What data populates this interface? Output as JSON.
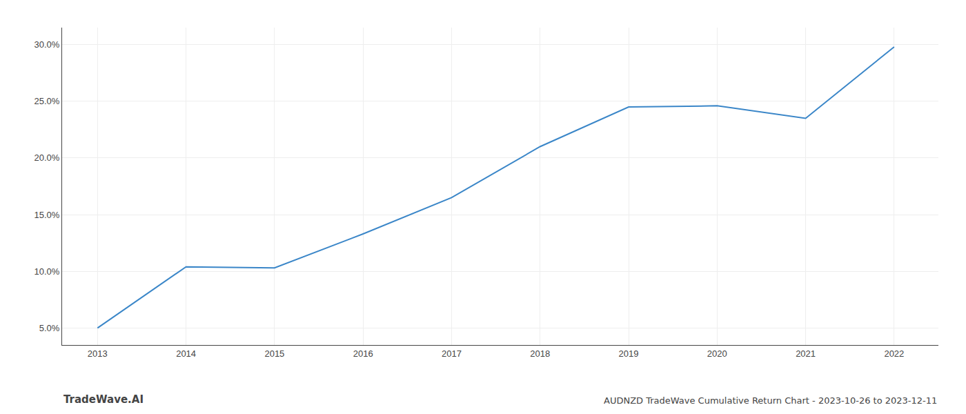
{
  "chart_data": {
    "type": "line",
    "x": [
      2013,
      2014,
      2015,
      2016,
      2017,
      2018,
      2019,
      2020,
      2021,
      2022
    ],
    "values": [
      0.05,
      0.104,
      0.103,
      0.133,
      0.165,
      0.21,
      0.245,
      0.246,
      0.235,
      0.298
    ],
    "color": "#3a86c8",
    "xlim": [
      2012.6,
      2022.5
    ],
    "xticks": [
      2013,
      2014,
      2015,
      2016,
      2017,
      2018,
      2019,
      2020,
      2021,
      2022
    ],
    "ylim": [
      0.035,
      0.315
    ],
    "yticks": [
      {
        "value": 0.05,
        "label": "5.0%"
      },
      {
        "value": 0.1,
        "label": "10.0%"
      },
      {
        "value": 0.15,
        "label": "15.0%"
      },
      {
        "value": 0.2,
        "label": "20.0%"
      },
      {
        "value": 0.25,
        "label": "25.0%"
      },
      {
        "value": 0.3,
        "label": "30.0%"
      }
    ],
    "grid": true,
    "annotations": [
      "TradeWave.AI",
      "AUDNZD TradeWave Cumulative Return Chart - 2023-10-26 to 2023-12-11"
    ]
  }
}
